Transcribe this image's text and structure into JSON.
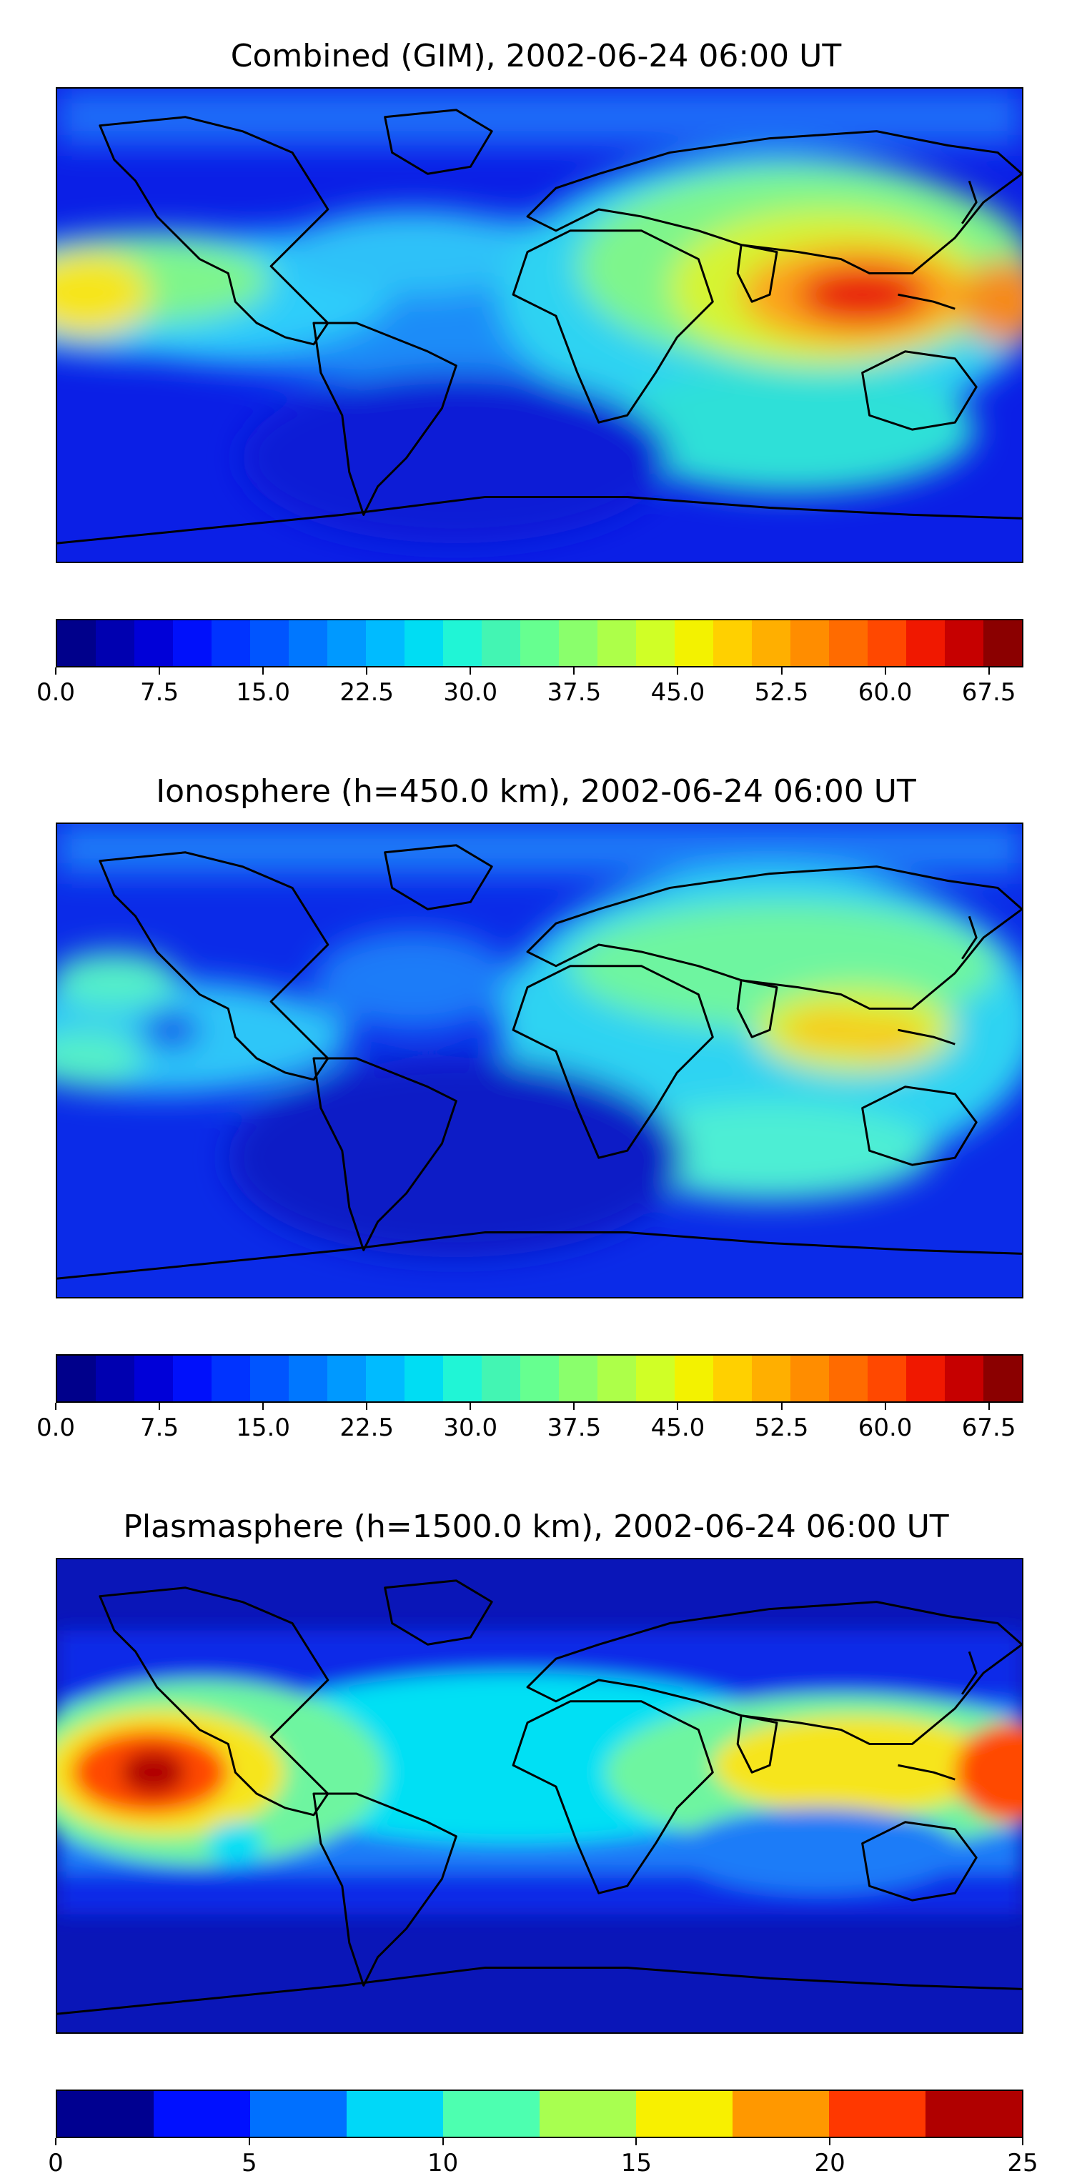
{
  "panels": [
    {
      "title": "Combined (GIM), 2002-06-24 06:00 UT",
      "colorbar": {
        "min": 0.0,
        "max": 70.0,
        "step": 2.5,
        "tick_labels": [
          "0.0",
          "7.5",
          "15.0",
          "22.5",
          "30.0",
          "37.5",
          "45.0",
          "52.5",
          "60.0",
          "67.5"
        ]
      }
    },
    {
      "title": "Ionosphere  (h=450.0 km), 2002-06-24 06:00 UT",
      "colorbar": {
        "min": 0.0,
        "max": 70.0,
        "step": 2.5,
        "tick_labels": [
          "0.0",
          "7.5",
          "15.0",
          "22.5",
          "30.0",
          "37.5",
          "45.0",
          "52.5",
          "60.0",
          "67.5"
        ]
      }
    },
    {
      "title": "Plasmasphere (h=1500.0 km), 2002-06-24 06:00 UT",
      "colorbar": {
        "min": 0,
        "max": 25,
        "step": 2.5,
        "tick_labels": [
          "0",
          "5",
          "10",
          "15",
          "20",
          "25"
        ]
      }
    }
  ],
  "colormap": "jet"
}
